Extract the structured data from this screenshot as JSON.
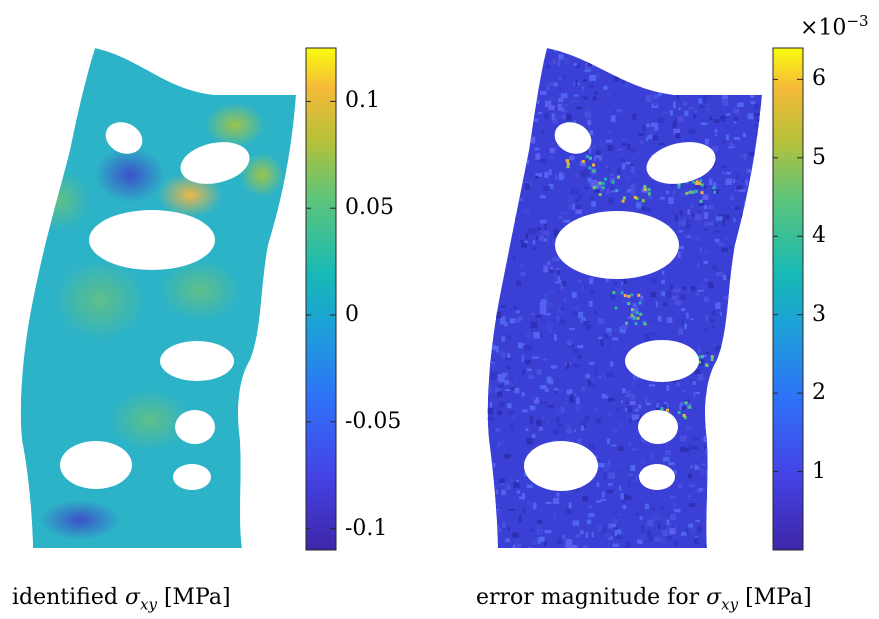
{
  "chart_data": [
    {
      "type": "heatmap",
      "title": "",
      "caption_prefix": "identified",
      "caption_symbol": "σ",
      "caption_subscript": "xy",
      "caption_unit": "[MPa]",
      "colormap": "parula",
      "colorbar": {
        "clim": [
          -0.11,
          0.125
        ],
        "ticks": [
          0.1,
          0.05,
          0,
          -0.05,
          -0.1
        ],
        "tick_labels": [
          "0.1",
          "0.05",
          "0",
          "-0.05",
          "-0.1"
        ],
        "exponent_label": ""
      }
    },
    {
      "type": "heatmap",
      "title": "",
      "caption_prefix": "error magnitude for",
      "caption_symbol": "σ",
      "caption_subscript": "xy",
      "caption_unit": "[MPa]",
      "colormap": "parula",
      "colorbar": {
        "clim": [
          0,
          6.4
        ],
        "ticks": [
          6,
          5,
          4,
          3,
          2,
          1
        ],
        "tick_labels": [
          "6",
          "5",
          "4",
          "3",
          "2",
          "1"
        ],
        "exponent_base": "×10",
        "exponent_power": "−3"
      }
    }
  ],
  "colors": {
    "parula_low": "#3e26a8",
    "parula_mid": "#2ab3b8",
    "parula_high": "#f9fb0e",
    "left_background": "#2db3c7",
    "right_background": "#3a3fd6"
  }
}
